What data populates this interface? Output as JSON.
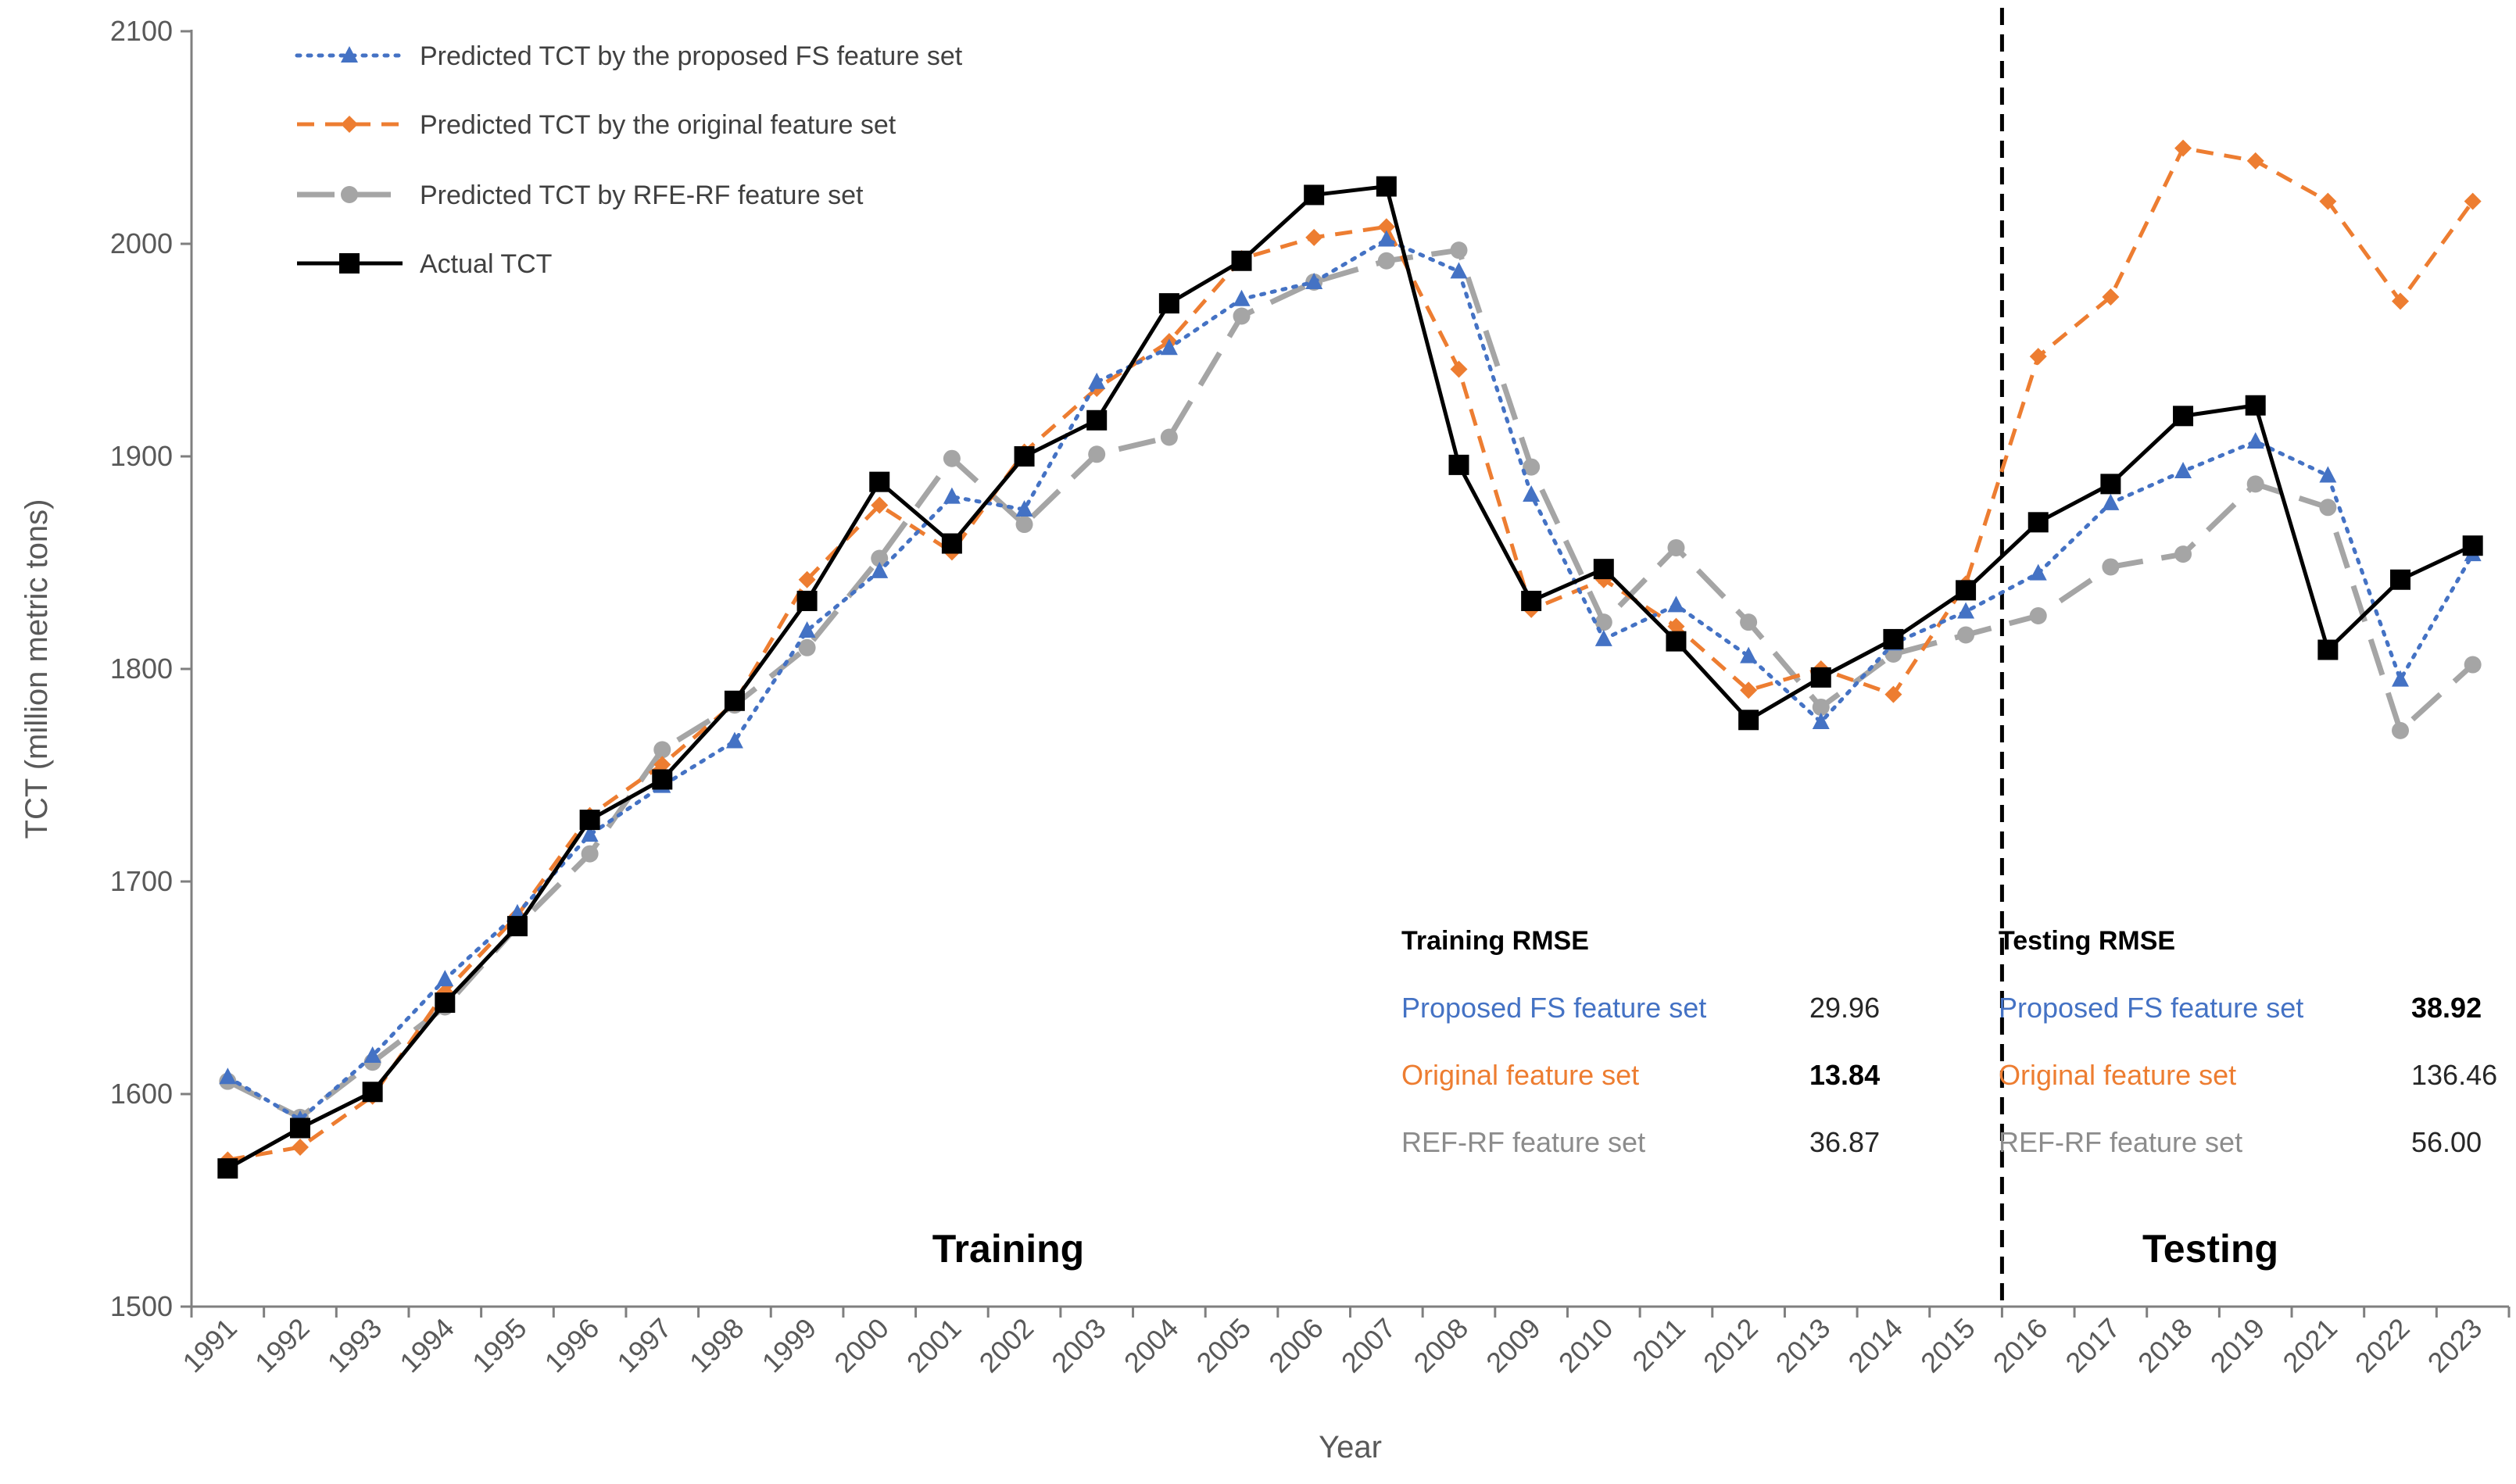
{
  "chart_data": {
    "type": "line",
    "title": "",
    "xlabel": "Year",
    "ylabel": "TCT (million metric tons)",
    "ylim": [
      1500,
      2100
    ],
    "yticks": [
      1500,
      1600,
      1700,
      1800,
      1900,
      2000,
      2100
    ],
    "categories": [
      "1991",
      "1992",
      "1993",
      "1994",
      "1995",
      "1996",
      "1997",
      "1998",
      "1999",
      "2000",
      "2001",
      "2002",
      "2003",
      "2004",
      "2005",
      "2006",
      "2007",
      "2008",
      "2009",
      "2010",
      "2011",
      "2012",
      "2013",
      "2014",
      "2015",
      "2016",
      "2017",
      "2018",
      "2019",
      "2021",
      "2022",
      "2023"
    ],
    "split_after": "2015",
    "legend_position": "top-left",
    "series": [
      {
        "name": "Predicted TCT by the proposed FS feature set",
        "key": "fs",
        "color": "#4472C4",
        "marker": "triangle",
        "values": [
          1608,
          1588,
          1618,
          1654,
          1685,
          1722,
          1745,
          1766,
          1818,
          1846,
          1881,
          1875,
          1935,
          1951,
          1974,
          1982,
          2002,
          1987,
          1882,
          1814,
          1830,
          1806,
          1775,
          1812,
          1827,
          1845,
          1878,
          1893,
          1907,
          1891,
          1795,
          1854
        ]
      },
      {
        "name": "Predicted TCT by the original feature set",
        "key": "orig",
        "color": "#ED7D31",
        "marker": "diamond",
        "values": [
          1569,
          1575,
          1599,
          1648,
          1684,
          1731,
          1755,
          1784,
          1842,
          1877,
          1855,
          1902,
          1932,
          1954,
          1993,
          2003,
          2008,
          1941,
          1828,
          1842,
          1820,
          1790,
          1800,
          1788,
          1840,
          1947,
          1975,
          2045,
          2039,
          2020,
          1973,
          2020
        ]
      },
      {
        "name": "Predicted TCT by RFE-RF feature set",
        "key": "rfe",
        "color": "#A5A5A5",
        "marker": "circle",
        "values": [
          1606,
          1589,
          1615,
          1641,
          1679,
          1713,
          1762,
          1783,
          1810,
          1852,
          1899,
          1868,
          1901,
          1909,
          1966,
          1982,
          1992,
          1997,
          1895,
          1822,
          1857,
          1822,
          1782,
          1807,
          1816,
          1825,
          1848,
          1854,
          1887,
          1876,
          1771,
          1802
        ]
      },
      {
        "name": "Actual TCT",
        "key": "actual",
        "color": "#000000",
        "marker": "square",
        "values": [
          1565,
          1584,
          1601,
          1643,
          1679,
          1729,
          1748,
          1785,
          1832,
          1888,
          1859,
          1900,
          1917,
          1972,
          1992,
          2023,
          2027,
          1896,
          1832,
          1847,
          1813,
          1776,
          1796,
          1814,
          1837,
          1869,
          1887,
          1919,
          1924,
          1809,
          1842,
          1858
        ]
      }
    ],
    "regions": {
      "training": "Training",
      "testing": "Testing"
    },
    "rmse": {
      "training": {
        "title": "Training RMSE",
        "rows": [
          {
            "label": "Proposed FS feature set",
            "value": "29.96",
            "bold": false,
            "color": "#4472C4"
          },
          {
            "label": "Original feature set",
            "value": "13.84",
            "bold": true,
            "color": "#ED7D31"
          },
          {
            "label": "REF-RF feature set",
            "value": "36.87",
            "bold": false,
            "color": "#8C8C8C"
          }
        ]
      },
      "testing": {
        "title": "Testing RMSE",
        "rows": [
          {
            "label": "Proposed FS feature set",
            "value": "38.92",
            "bold": true,
            "color": "#4472C4"
          },
          {
            "label": "Original feature set",
            "value": "136.46",
            "bold": false,
            "color": "#ED7D31"
          },
          {
            "label": "REF-RF feature set",
            "value": "56.00",
            "bold": false,
            "color": "#8C8C8C"
          }
        ]
      }
    }
  }
}
